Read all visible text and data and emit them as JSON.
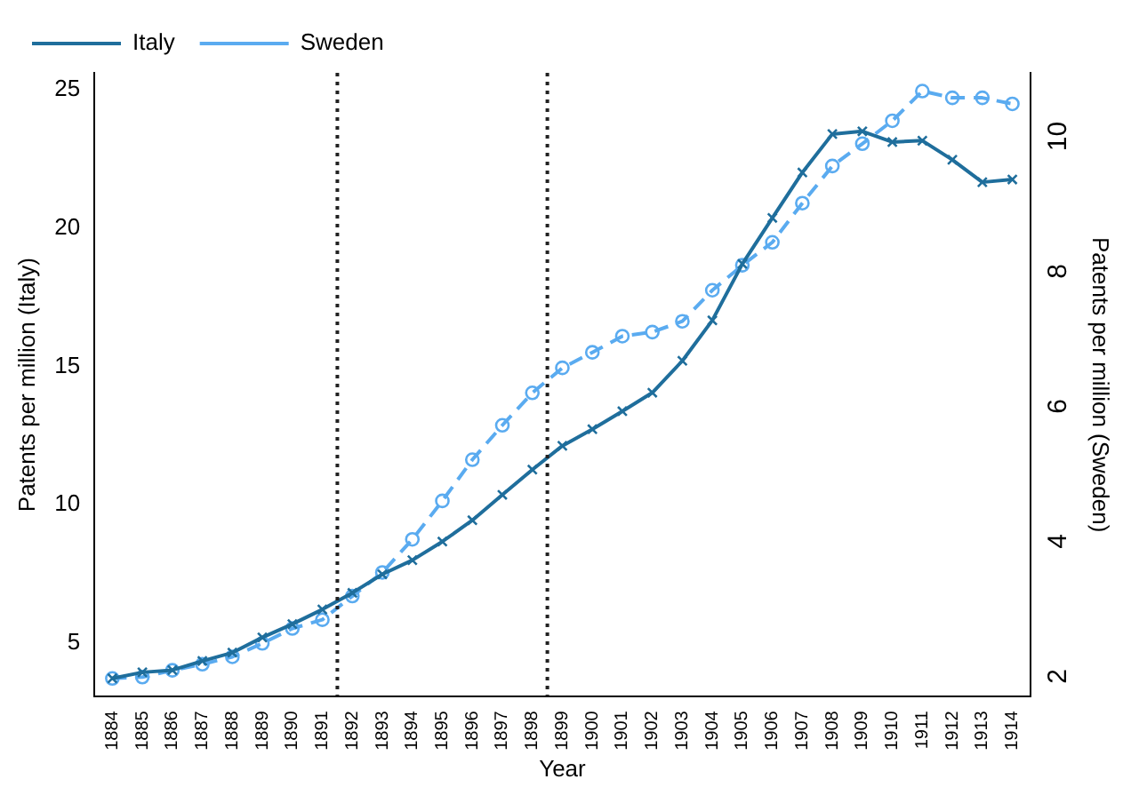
{
  "chart_data": {
    "type": "line",
    "xlabel": "Year",
    "ylabel": "Patents per million (Italy)",
    "y2label": "Patents per million (Sweden)",
    "x": [
      1884,
      1885,
      1886,
      1887,
      1888,
      1889,
      1890,
      1891,
      1892,
      1893,
      1894,
      1895,
      1896,
      1897,
      1898,
      1899,
      1900,
      1901,
      1902,
      1903,
      1904,
      1905,
      1906,
      1907,
      1908,
      1909,
      1910,
      1911,
      1912,
      1913,
      1914
    ],
    "series": [
      {
        "name": "Italy",
        "color": "#1f6e9c",
        "marker": "cross",
        "line_style": "solid",
        "values": [
          3.73,
          3.95,
          4.03,
          4.36,
          4.66,
          5.21,
          5.69,
          6.22,
          6.82,
          7.49,
          8.0,
          8.67,
          9.44,
          10.36,
          11.27,
          12.13,
          12.73,
          13.38,
          14.05,
          15.2,
          16.66,
          18.7,
          20.36,
          22.0,
          23.39,
          23.49,
          23.1,
          23.15,
          22.46,
          21.65,
          21.75
        ]
      },
      {
        "name": "Sweden",
        "color": "#5aabf0",
        "marker": "circle",
        "line_style": "dashed",
        "axis": "y2",
        "values": [
          1.97,
          1.99,
          2.09,
          2.18,
          2.29,
          2.49,
          2.71,
          2.84,
          3.19,
          3.54,
          4.03,
          4.6,
          5.21,
          5.72,
          6.2,
          6.57,
          6.8,
          7.04,
          7.1,
          7.26,
          7.72,
          8.09,
          8.43,
          9.01,
          9.56,
          9.89,
          10.23,
          10.67,
          10.57,
          10.57,
          10.48
        ]
      }
    ],
    "xlim": [
      1883.4,
      1914.6
    ],
    "xticks": [
      1884,
      1885,
      1886,
      1887,
      1888,
      1889,
      1890,
      1891,
      1892,
      1893,
      1894,
      1895,
      1896,
      1897,
      1898,
      1899,
      1900,
      1901,
      1902,
      1903,
      1904,
      1905,
      1906,
      1907,
      1908,
      1909,
      1910,
      1911,
      1912,
      1913,
      1914
    ],
    "ylim": [
      3.07,
      25.6
    ],
    "yticks": [
      5,
      10,
      15,
      20,
      25
    ],
    "y2lim": [
      1.7,
      10.94
    ],
    "y2ticks": [
      2,
      4,
      6,
      8,
      10
    ],
    "ref_lines": [
      {
        "axis": "x",
        "value": 1891.5,
        "color": "#222222",
        "line_style": "dotted"
      },
      {
        "axis": "x",
        "value": 1898.5,
        "color": "#222222",
        "line_style": "dotted"
      }
    ],
    "grid": false,
    "legend": "top left"
  }
}
